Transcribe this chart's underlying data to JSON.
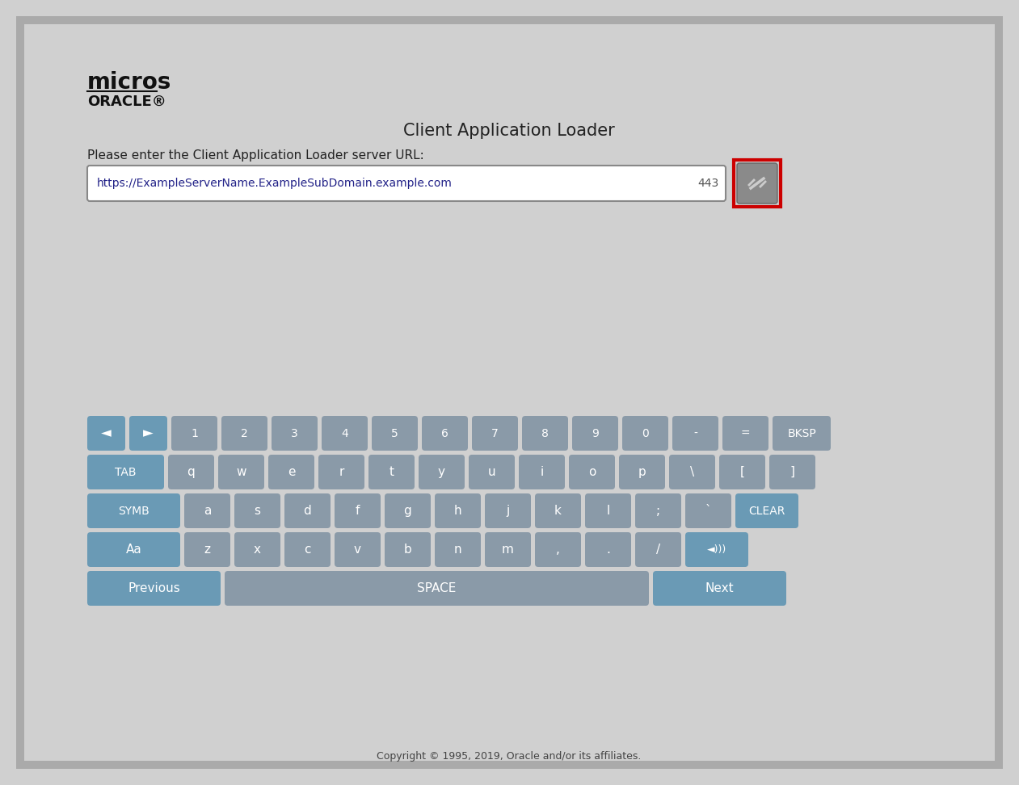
{
  "bg_color": "#d0d0d0",
  "title": "Client Application Loader",
  "title_fontsize": 15,
  "logo_micros": "micros",
  "logo_oracle": "ORACLE®",
  "prompt": "Please enter the Client Application Loader server URL:",
  "url_text": "https://ExampleServerName.ExampleSubDomain.example.com",
  "port_text": "443",
  "url_box_color": "#ffffff",
  "url_border_color": "#999999",
  "btn_icon_bg": "#8a8a8a",
  "btn_highlight_border": "#cc0000",
  "key_gray": "#8a9aa8",
  "key_blue": "#6a9ab5",
  "key_text_color": "#ffffff",
  "footer": "Copyright © 1995, 2019, Oracle and/or its affiliates.",
  "row1_keys": [
    "1",
    "2",
    "3",
    "4",
    "5",
    "6",
    "7",
    "8",
    "9",
    "0",
    "-",
    "=",
    "BKSP"
  ],
  "row2_keys": [
    "TAB",
    "q",
    "w",
    "e",
    "r",
    "t",
    "y",
    "u",
    "i",
    "o",
    "p",
    "\\",
    "[",
    "]"
  ],
  "row3_keys": [
    "SYMB",
    "a",
    "s",
    "d",
    "f",
    "g",
    "h",
    "j",
    "k",
    "l",
    ";",
    "`",
    "CLEAR"
  ],
  "row4_keys": [
    "Aa",
    "z",
    "x",
    "c",
    "v",
    "b",
    "n",
    "m",
    ",",
    ".",
    "/",
    "◄►"
  ],
  "row5_keys": [
    "Previous",
    "SPACE",
    "Next"
  ]
}
